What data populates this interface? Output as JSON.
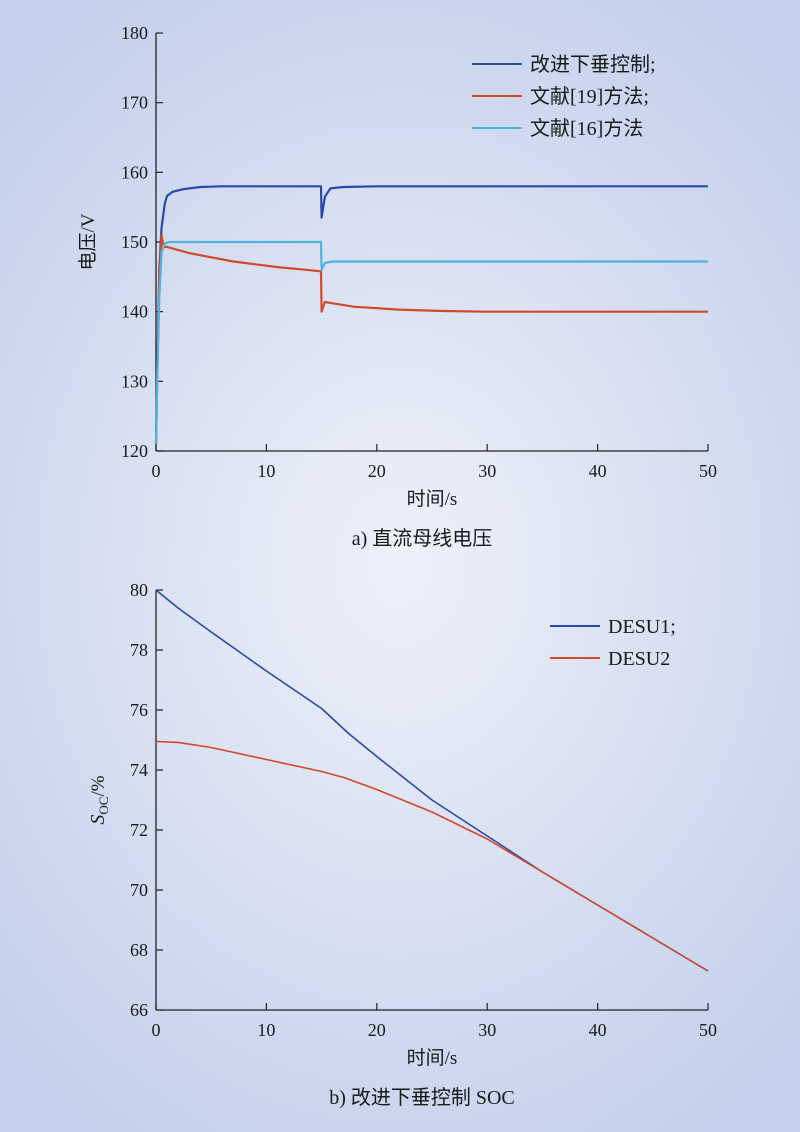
{
  "chart_data": [
    {
      "type": "line",
      "caption": "a) 直流母线电压",
      "xlabel": "时间/s",
      "ylabel": "电压/V",
      "xlim": [
        0,
        50
      ],
      "ylim": [
        120,
        180
      ],
      "xticks": [
        0,
        10,
        20,
        30,
        40,
        50
      ],
      "yticks": [
        120,
        130,
        140,
        150,
        160,
        170,
        180
      ],
      "grid": false,
      "legend_position": "top-right",
      "series": [
        {
          "name": "改进下垂控制;",
          "color": "#2a49a8",
          "points": [
            [
              0,
              121
            ],
            [
              0.15,
              134
            ],
            [
              0.3,
              146
            ],
            [
              0.5,
              152
            ],
            [
              0.8,
              155.5
            ],
            [
              1,
              156.6
            ],
            [
              1.5,
              157.2
            ],
            [
              2.5,
              157.6
            ],
            [
              4,
              157.9
            ],
            [
              6,
              158
            ],
            [
              10,
              158
            ],
            [
              14.95,
              158
            ],
            [
              15,
              153.5
            ],
            [
              15.3,
              156.5
            ],
            [
              15.8,
              157.7
            ],
            [
              17,
              157.9
            ],
            [
              20,
              158
            ],
            [
              50,
              158
            ]
          ]
        },
        {
          "name": "文献[19]方法;",
          "color": "#d2492a",
          "points": [
            [
              0,
              121
            ],
            [
              0.1,
              130
            ],
            [
              0.3,
              145
            ],
            [
              0.5,
              151
            ],
            [
              0.7,
              149.3
            ],
            [
              1,
              149.3
            ],
            [
              3,
              148.4
            ],
            [
              5,
              147.8
            ],
            [
              7,
              147.2
            ],
            [
              9,
              146.8
            ],
            [
              11,
              146.4
            ],
            [
              13,
              146.1
            ],
            [
              14.95,
              145.8
            ],
            [
              15,
              140
            ],
            [
              15.3,
              141.4
            ],
            [
              16,
              141.2
            ],
            [
              18,
              140.7
            ],
            [
              22,
              140.3
            ],
            [
              26,
              140.1
            ],
            [
              30,
              140
            ],
            [
              50,
              140
            ]
          ]
        },
        {
          "name": "文献[16]方法",
          "color": "#4fb3e0",
          "points": [
            [
              0,
              121
            ],
            [
              0.15,
              133
            ],
            [
              0.3,
              142
            ],
            [
              0.5,
              148.5
            ],
            [
              0.8,
              149.8
            ],
            [
              1.2,
              150
            ],
            [
              14.95,
              150
            ],
            [
              15,
              146
            ],
            [
              15.3,
              147
            ],
            [
              16,
              147.2
            ],
            [
              50,
              147.2
            ]
          ]
        }
      ]
    },
    {
      "type": "line",
      "caption": "b) 改进下垂控制 SOC",
      "xlabel": "时间/s",
      "ylabel_main": "S",
      "ylabel_sub": "OC",
      "ylabel_suffix": "/%",
      "xlim": [
        0,
        50
      ],
      "ylim": [
        66,
        80
      ],
      "xticks": [
        0,
        10,
        20,
        30,
        40,
        50
      ],
      "yticks": [
        66,
        68,
        70,
        72,
        74,
        76,
        78,
        80
      ],
      "grid": false,
      "legend_position": "top-right",
      "series": [
        {
          "name": "DESU1;",
          "color": "#2a49a8",
          "points": [
            [
              0,
              80
            ],
            [
              2,
              79.4
            ],
            [
              5,
              78.6
            ],
            [
              10,
              77.3
            ],
            [
              15,
              76.05
            ],
            [
              17.5,
              75.2
            ],
            [
              20,
              74.45
            ],
            [
              25,
              73
            ],
            [
              30,
              71.8
            ],
            [
              35,
              70.6
            ],
            [
              40,
              69.5
            ],
            [
              45,
              68.4
            ],
            [
              50,
              67.3
            ]
          ]
        },
        {
          "name": "DESU2",
          "color": "#d2492a",
          "points": [
            [
              0,
              74.95
            ],
            [
              2,
              74.92
            ],
            [
              5,
              74.75
            ],
            [
              10,
              74.35
            ],
            [
              15,
              73.95
            ],
            [
              17,
              73.75
            ],
            [
              20,
              73.35
            ],
            [
              25,
              72.6
            ],
            [
              30,
              71.7
            ],
            [
              35,
              70.6
            ],
            [
              40,
              69.5
            ],
            [
              45,
              68.4
            ],
            [
              50,
              67.3
            ]
          ]
        }
      ]
    }
  ]
}
